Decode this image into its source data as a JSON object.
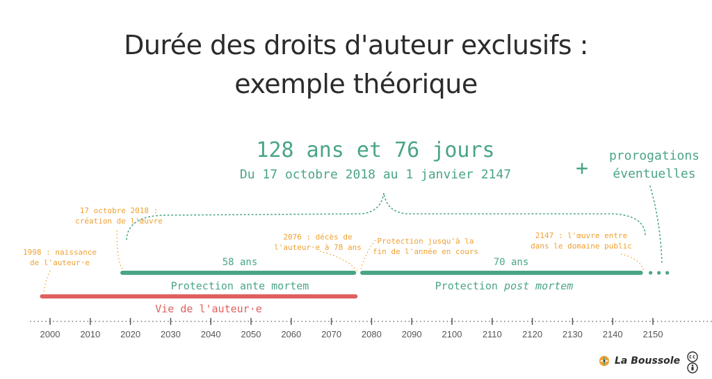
{
  "title_line1": "Durée des droits d'auteur exclusifs :",
  "title_line2": "exemple théorique",
  "total_duration": "128 ans et 76 jours",
  "date_range": "Du 17 octobre 2018 au 1 janvier 2147",
  "plus_sign": "+",
  "extensions": [
    "prorogations",
    "éventuelles"
  ],
  "annotations": {
    "birth": [
      "1998 : naissance",
      "de l'auteur·e"
    ],
    "creation": [
      "17 octobre 2018 :",
      "création de l'œuvre"
    ],
    "death": [
      "2076 : décès de",
      "l'auteur·e à 78 ans"
    ],
    "end_year": [
      "Protection jusqu'à la",
      "fin de l'année en cours"
    ],
    "public_domain": [
      "2147 : l'œuvre entre",
      "dans le domaine public"
    ]
  },
  "periods": {
    "ante_years": "58 ans",
    "ante_label": "Protection ante mortem",
    "post_years": "70 ans",
    "post_label_prefix": "Protection ",
    "post_label_em": "post mortem",
    "life_label": "Vie de l'auteur·e"
  },
  "chart_data": {
    "type": "timeline",
    "axis": {
      "min": 1995,
      "max": 2160,
      "ticks": [
        2000,
        2010,
        2020,
        2030,
        2040,
        2050,
        2060,
        2070,
        2080,
        2090,
        2100,
        2110,
        2120,
        2130,
        2140,
        2150
      ]
    },
    "bars": [
      {
        "name": "Protection ante mortem",
        "start": 2018,
        "end": 2076,
        "color": "#4aa586"
      },
      {
        "name": "Protection post mortem",
        "start": 2077,
        "end": 2147,
        "color": "#4aa586"
      },
      {
        "name": "Vie de l'auteur·e",
        "start": 1998,
        "end": 2076,
        "color": "#e05f5f"
      }
    ],
    "events": [
      1998,
      2018,
      2076,
      2077,
      2147
    ]
  },
  "brand": "La Boussole",
  "colors": {
    "green": "#4aa586",
    "orange": "#f0a030",
    "red": "#e05f5f",
    "axis": "#555555"
  }
}
